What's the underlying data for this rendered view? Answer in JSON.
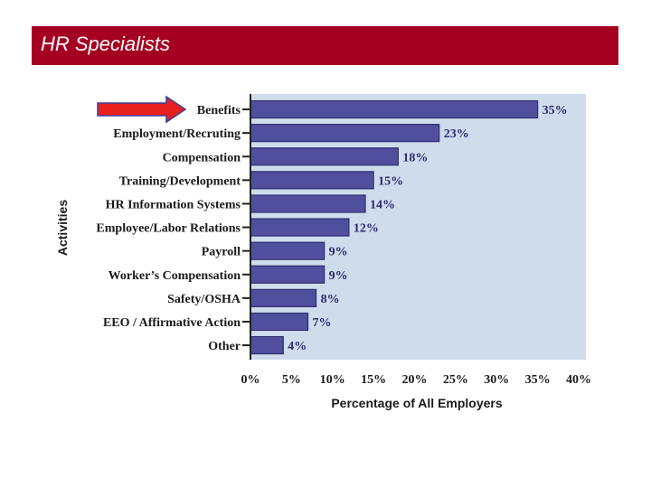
{
  "header": {
    "title": "HR Specialists"
  },
  "colors": {
    "title_bar": "#a50021",
    "plot_bg": "#cfdcec",
    "bar_fill": "#4f4f9e",
    "bar_stroke": "#2e2e70",
    "arrow": "#e8201e"
  },
  "chart_data": {
    "type": "bar",
    "orientation": "horizontal",
    "categories": [
      "Benefits",
      "Employment/Recruting",
      "Compensation",
      "Training/Development",
      "HR Information Systems",
      "Employee/Labor Relations",
      "Payroll",
      "Worker’s Compensation",
      "Safety/OSHA",
      "EEO / Affirmative Action",
      "Other"
    ],
    "values": [
      35,
      23,
      18,
      15,
      14,
      12,
      9,
      9,
      8,
      7,
      4
    ],
    "value_labels": [
      "35%",
      "23%",
      "18%",
      "15%",
      "14%",
      "12%",
      "9%",
      "9%",
      "8%",
      "7%",
      "4%"
    ],
    "xlabel": "Percentage of All Employers",
    "ylabel": "Activities",
    "xlim": [
      0,
      40
    ],
    "xticks": [
      "0%",
      "5%",
      "10%",
      "15%",
      "20%",
      "25%",
      "30%",
      "35%",
      "40%"
    ],
    "highlighted_category": "Benefits"
  }
}
